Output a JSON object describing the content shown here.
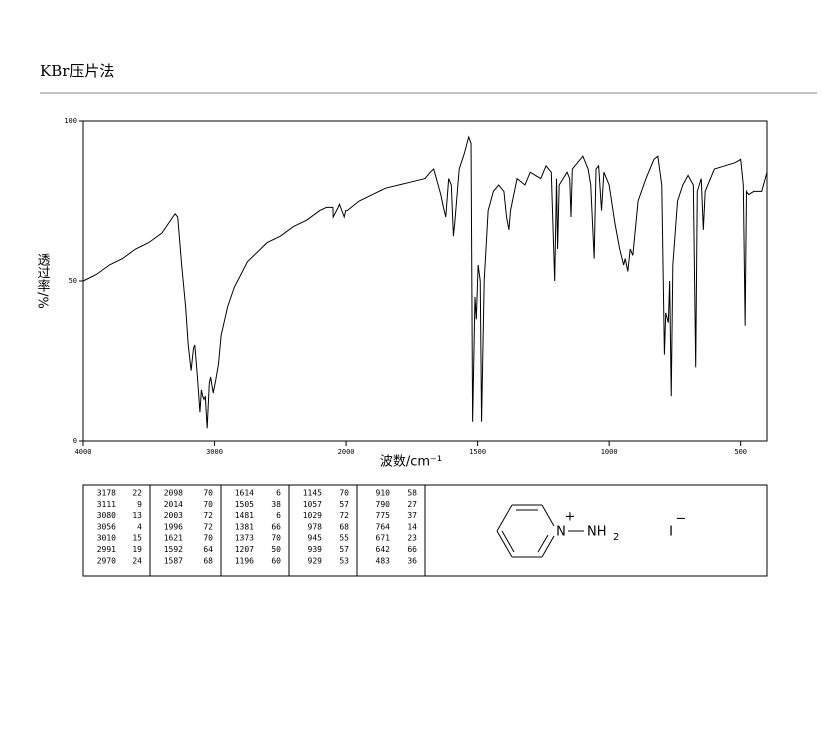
{
  "header": {
    "title": "KBr压片法"
  },
  "chart_data": {
    "type": "line",
    "xlabel": "波数/cm⁻¹",
    "ylabel": "透过率/%",
    "xlim": [
      4000,
      400
    ],
    "ylim": [
      0,
      100
    ],
    "xticks": [
      4000,
      3000,
      2000,
      1500,
      1000,
      500
    ],
    "yticks": [
      0,
      50,
      100
    ],
    "x_scale_break": {
      "at": 2000,
      "factor": 2
    },
    "color": "#000000",
    "x": [
      4000,
      3900,
      3800,
      3700,
      3600,
      3500,
      3400,
      3350,
      3300,
      3280,
      3250,
      3220,
      3200,
      3178,
      3160,
      3150,
      3130,
      3111,
      3100,
      3090,
      3080,
      3070,
      3056,
      3040,
      3030,
      3010,
      2991,
      2970,
      2950,
      2900,
      2850,
      2800,
      2750,
      2700,
      2600,
      2500,
      2400,
      2300,
      2200,
      2150,
      2100,
      2098,
      2060,
      2050,
      2014,
      2003,
      1996,
      1950,
      1900,
      1850,
      1800,
      1750,
      1700,
      1680,
      1667,
      1650,
      1640,
      1630,
      1621,
      1610,
      1600,
      1592,
      1587,
      1570,
      1550,
      1534,
      1525,
      1519,
      1510,
      1505,
      1498,
      1490,
      1485,
      1475,
      1460,
      1440,
      1420,
      1400,
      1390,
      1381,
      1375,
      1350,
      1320,
      1300,
      1260,
      1240,
      1220,
      1207,
      1200,
      1196,
      1190,
      1160,
      1150,
      1145,
      1140,
      1100,
      1080,
      1070,
      1057,
      1050,
      1040,
      1029,
      1020,
      1000,
      978,
      960,
      945,
      939,
      929,
      920,
      910,
      890,
      860,
      830,
      815,
      800,
      790,
      785,
      775,
      770,
      764,
      758,
      740,
      720,
      700,
      680,
      671,
      665,
      650,
      642,
      635,
      600,
      560,
      520,
      500,
      490,
      483,
      478,
      470,
      450,
      420,
      400
    ],
    "values": [
      50,
      52,
      55,
      57,
      60,
      62,
      65,
      68,
      71,
      70,
      55,
      42,
      30,
      22,
      29,
      30,
      20,
      9,
      16,
      14,
      13,
      14,
      4,
      18,
      20,
      15,
      19,
      24,
      33,
      42,
      48,
      52,
      56,
      58,
      62,
      64,
      67,
      69,
      72,
      73,
      73,
      70,
      73,
      74,
      70,
      72,
      72,
      75,
      77,
      79,
      80,
      81,
      82,
      84,
      85,
      80,
      77,
      73,
      70,
      82,
      80,
      64,
      68,
      85,
      90,
      95,
      93,
      6,
      45,
      38,
      55,
      50,
      6,
      50,
      72,
      78,
      80,
      78,
      70,
      66,
      72,
      82,
      80,
      84,
      82,
      86,
      84,
      50,
      82,
      60,
      80,
      84,
      82,
      70,
      85,
      89,
      85,
      80,
      57,
      85,
      86,
      72,
      84,
      80,
      68,
      60,
      55,
      57,
      53,
      60,
      58,
      75,
      82,
      88,
      89,
      80,
      27,
      40,
      37,
      50,
      14,
      55,
      75,
      80,
      83,
      80,
      23,
      78,
      82,
      66,
      78,
      85,
      86,
      87,
      88,
      80,
      36,
      78,
      77,
      78,
      78,
      84
    ]
  },
  "peak_table": {
    "columns": [
      [
        [
          3178,
          22
        ],
        [
          3111,
          9
        ],
        [
          3080,
          13
        ],
        [
          3056,
          4
        ],
        [
          3010,
          15
        ],
        [
          2991,
          19
        ],
        [
          2970,
          24
        ]
      ],
      [
        [
          2098,
          70
        ],
        [
          2014,
          70
        ],
        [
          2003,
          72
        ],
        [
          1996,
          72
        ],
        [
          1621,
          70
        ],
        [
          1592,
          64
        ],
        [
          1587,
          68
        ]
      ],
      [
        [
          1614,
          6
        ],
        [
          1505,
          38
        ],
        [
          1481,
          6
        ],
        [
          1381,
          66
        ],
        [
          1373,
          70
        ],
        [
          1207,
          50
        ],
        [
          1196,
          60
        ]
      ],
      [
        [
          1145,
          70
        ],
        [
          1057,
          57
        ],
        [
          1029,
          72
        ],
        [
          978,
          68
        ],
        [
          945,
          55
        ],
        [
          939,
          57
        ],
        [
          929,
          53
        ]
      ],
      [
        [
          910,
          58
        ],
        [
          790,
          27
        ],
        [
          775,
          37
        ],
        [
          764,
          14
        ],
        [
          671,
          23
        ],
        [
          642,
          66
        ],
        [
          483,
          36
        ]
      ]
    ]
  },
  "structure": {
    "ring_atom": "N",
    "ring_charge": "+",
    "substituent": "NH",
    "subscript": "2",
    "anion": "I",
    "anion_charge": "−"
  }
}
